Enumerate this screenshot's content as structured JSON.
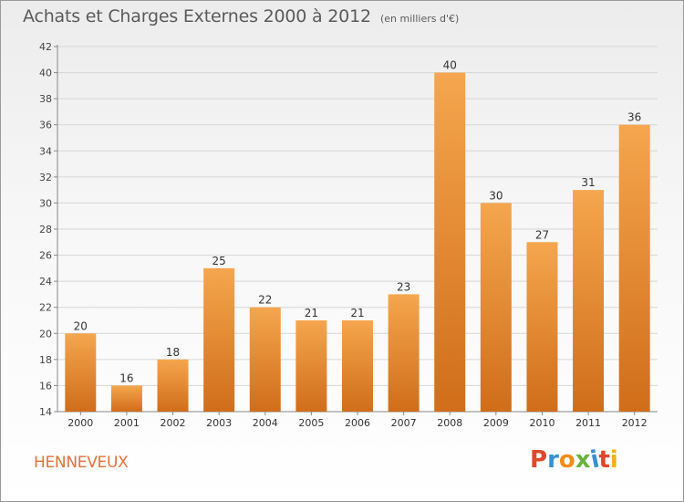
{
  "header": {
    "title": "Achats et Charges Externes 2000 à 2012",
    "subtitle": "(en milliers d'€)"
  },
  "footer": {
    "commune": "HENNEVEUX",
    "logo_text": "Proxiti"
  },
  "colors": {
    "bar_light": "#f5a64e",
    "bar_dark": "#d06d1a",
    "commune_text": "#e0723a",
    "logo_letters": [
      "#e0472b",
      "#3a8fd0",
      "#f28c1c",
      "#6ab23e",
      "#3a8fd0",
      "#e0472b",
      "#f2b01c"
    ]
  },
  "chart_data": {
    "type": "bar",
    "categories": [
      "2000",
      "2001",
      "2002",
      "2003",
      "2004",
      "2005",
      "2006",
      "2007",
      "2008",
      "2009",
      "2010",
      "2011",
      "2012"
    ],
    "values": [
      20,
      16,
      18,
      25,
      22,
      21,
      21,
      23,
      40,
      30,
      27,
      31,
      36
    ],
    "value_labels": [
      "20",
      "16",
      "18",
      "25",
      "22",
      "21",
      "21",
      "23",
      "40",
      "30",
      "27",
      "31",
      "36"
    ],
    "title": "Achats et Charges Externes 2000 à 2012",
    "subtitle": "(en milliers d'€)",
    "ylim": [
      14,
      42
    ],
    "yticks": [
      14,
      16,
      18,
      20,
      22,
      24,
      26,
      28,
      30,
      32,
      34,
      36,
      38,
      40,
      42
    ],
    "grid": true
  }
}
